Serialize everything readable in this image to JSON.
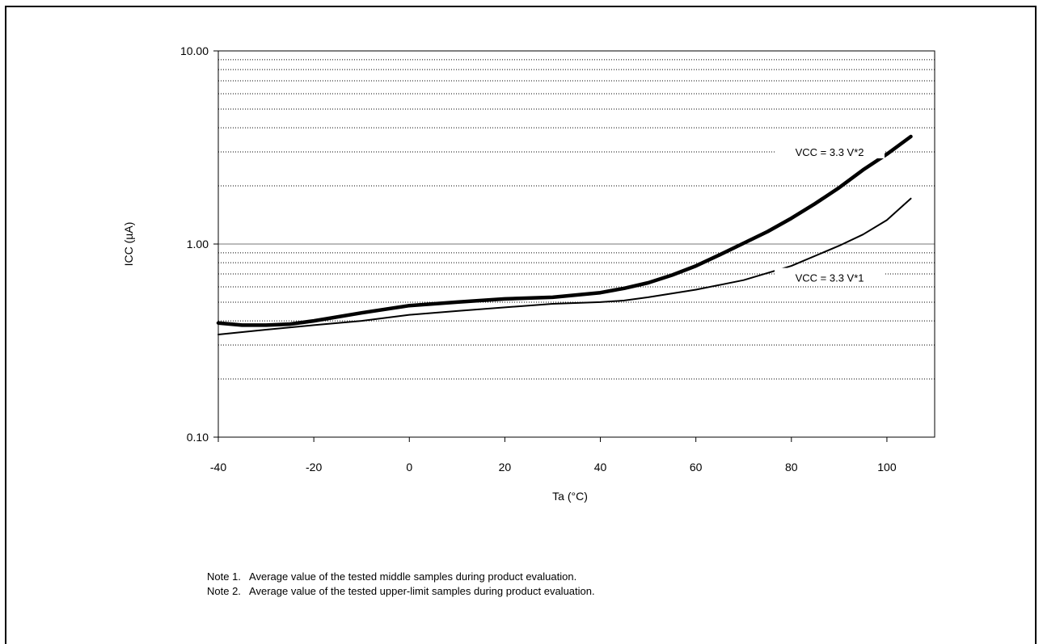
{
  "chart_data": {
    "type": "line",
    "y_scale": "log",
    "xlabel": "Ta (°C)",
    "ylabel": "ICC (µA)",
    "xlim": [
      -40,
      110
    ],
    "ylim": [
      0.1,
      10
    ],
    "x_ticks": [
      -40,
      -20,
      0,
      20,
      40,
      60,
      80,
      100
    ],
    "x_tick_labels": [
      "-40",
      "-20",
      "0",
      "20",
      "40",
      "60",
      "80",
      "100"
    ],
    "y_ticks": [
      0.1,
      1,
      10
    ],
    "y_tick_labels": [
      "0.10",
      "1.00",
      "10.00"
    ],
    "grid": "dotted minor horizontal gridlines at 0.2–0.9 and 2–9; solid line at 1.00",
    "series": [
      {
        "name": "VCC = 3.3 V*1",
        "line_width": "thin",
        "x": [
          -40,
          -30,
          -20,
          -10,
          0,
          10,
          20,
          30,
          40,
          45,
          50,
          60,
          70,
          80,
          90,
          95,
          100,
          105
        ],
        "y": [
          0.34,
          0.36,
          0.38,
          0.4,
          0.43,
          0.45,
          0.47,
          0.49,
          0.5,
          0.51,
          0.53,
          0.58,
          0.65,
          0.77,
          0.98,
          1.12,
          1.33,
          1.72
        ]
      },
      {
        "name": "VCC = 3.3 V*2",
        "line_width": "thick",
        "x": [
          -40,
          -35,
          -30,
          -25,
          -20,
          -10,
          0,
          10,
          20,
          30,
          40,
          45,
          50,
          55,
          60,
          65,
          70,
          75,
          80,
          85,
          90,
          95,
          100,
          105
        ],
        "y": [
          0.39,
          0.38,
          0.38,
          0.385,
          0.4,
          0.44,
          0.48,
          0.5,
          0.52,
          0.53,
          0.56,
          0.59,
          0.63,
          0.69,
          0.77,
          0.88,
          1.01,
          1.16,
          1.36,
          1.62,
          1.96,
          2.42,
          2.92,
          3.6
        ]
      }
    ],
    "annotations": [
      {
        "series": "VCC = 3.3 V*2",
        "text": "VCC = 3.3 V*2",
        "at_x": 88,
        "at_y": 3.0
      },
      {
        "series": "VCC = 3.3 V*1",
        "text": "VCC = 3.3 V*1",
        "at_x": 88,
        "at_y": 0.67
      }
    ]
  },
  "notes": [
    "Note 1.   Average value of the tested middle samples during product evaluation.",
    "Note 2.   Average value of the tested upper-limit samples during product evaluation."
  ]
}
